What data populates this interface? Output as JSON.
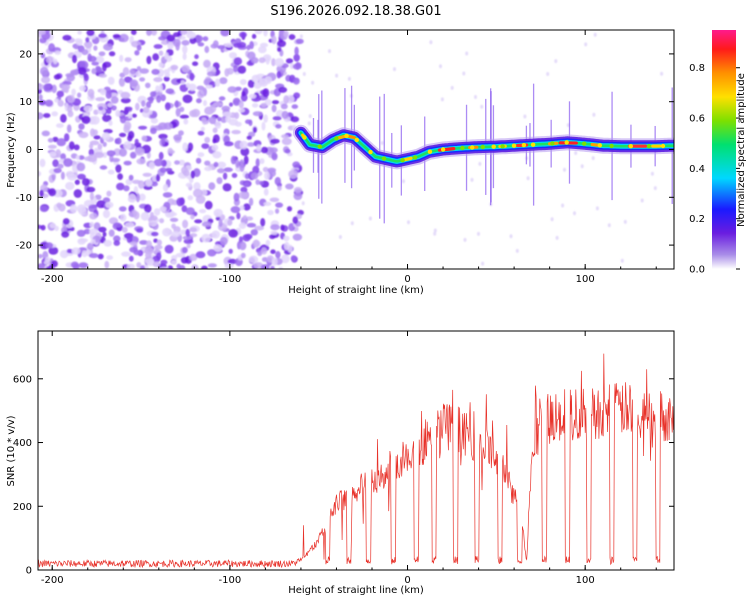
{
  "figure_title": "S196.2026.092.18.38.G01",
  "chart_data": [
    {
      "type": "heatmap",
      "title": "S196.2026.092.18.38.G01",
      "xlabel": "Height of straight line (km)",
      "ylabel": "Frequency (Hz)",
      "xlim": [
        -208,
        150
      ],
      "ylim": [
        -25,
        25
      ],
      "xticks": [
        -200,
        -100,
        0,
        100
      ],
      "yticks": [
        -20,
        -10,
        0,
        10,
        20
      ],
      "xtick_labels": [
        "-200",
        "-100",
        "0",
        "100"
      ],
      "ytick_labels": [
        "-20",
        "-10",
        "0",
        "10",
        "20"
      ],
      "noise_region_x": [
        -208,
        -60
      ],
      "signal_track": {
        "x": [
          -60,
          -55,
          -48,
          -42,
          -36,
          -30,
          -24,
          -18,
          -12,
          -6,
          0,
          6,
          12,
          20,
          30,
          40,
          50,
          60,
          70,
          80,
          90,
          100,
          110,
          120,
          130,
          140,
          150
        ],
        "freq": [
          3.5,
          1.0,
          0.5,
          2.0,
          3.0,
          2.5,
          0.5,
          -1.5,
          -2.0,
          -2.5,
          -2.0,
          -1.5,
          -0.5,
          0.0,
          0.3,
          0.5,
          0.6,
          0.8,
          1.0,
          1.2,
          1.5,
          1.2,
          0.8,
          0.7,
          0.7,
          0.7,
          0.8
        ]
      },
      "colorbar": {
        "label": "Normalized spectral amplitude",
        "range": [
          0.0,
          0.95
        ],
        "ticks": [
          0.0,
          0.2,
          0.4,
          0.6,
          0.8
        ],
        "tick_labels": [
          "0.0",
          "0.2",
          "0.4",
          "0.6",
          "0.8"
        ]
      }
    },
    {
      "type": "line",
      "xlabel": "Height of straight line (km)",
      "ylabel": "SNR (10 * v/v)",
      "xlim": [
        -208,
        150
      ],
      "ylim": [
        0,
        750
      ],
      "xticks": [
        -200,
        -100,
        0,
        100
      ],
      "yticks": [
        0,
        200,
        400,
        600
      ],
      "xtick_labels": [
        "-200",
        "-100",
        "0",
        "100"
      ],
      "ytick_labels": [
        "0",
        "200",
        "400",
        "600"
      ],
      "color": "#e8322a",
      "series": [
        {
          "name": "SNR",
          "envelope_x": [
            -208,
            -150,
            -100,
            -65,
            -60,
            -50,
            -40,
            -30,
            -20,
            -10,
            0,
            10,
            20,
            30,
            40,
            50,
            60,
            65,
            67,
            70,
            75,
            80,
            90,
            100,
            110,
            120,
            130,
            140,
            150
          ],
          "envelope_y": [
            20,
            20,
            20,
            20,
            30,
            100,
            220,
            260,
            300,
            340,
            380,
            430,
            480,
            470,
            420,
            380,
            250,
            150,
            20,
            420,
            480,
            520,
            520,
            520,
            530,
            540,
            530,
            520,
            510
          ],
          "dropout_x": [
            -45,
            -33,
            -22,
            -8,
            5,
            15,
            27,
            39,
            52,
            63,
            77,
            90,
            102,
            115,
            128,
            141
          ]
        }
      ]
    }
  ]
}
